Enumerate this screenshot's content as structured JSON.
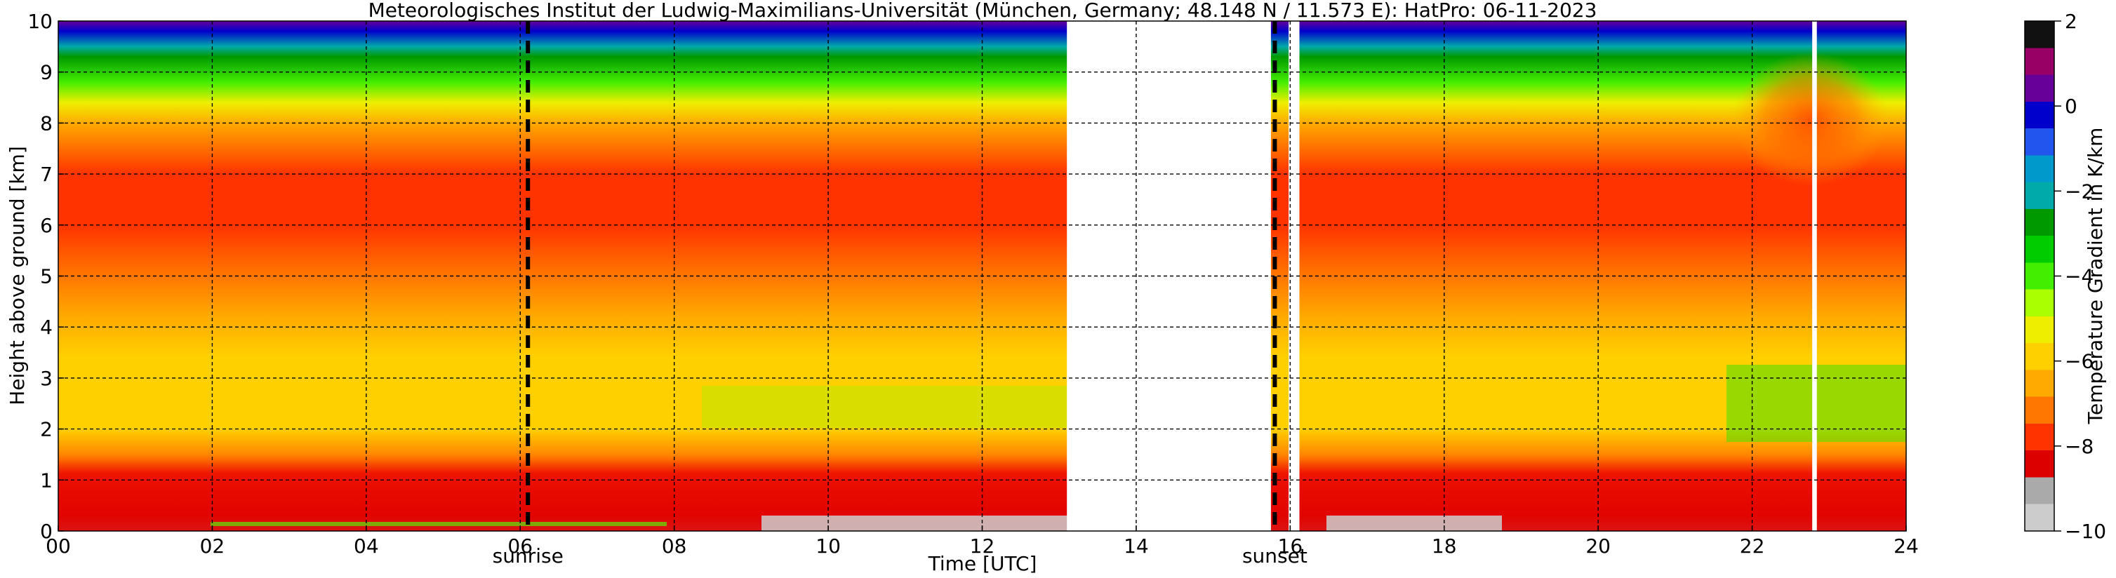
{
  "chart_data": {
    "type": "heatmap",
    "title": "Meteorologisches Institut der Ludwig-Maximilians-Universität (München, Germany; 48.148 N / 11.573 E):    HatPro: 06-11-2023",
    "xlabel": "Time [UTC]",
    "ylabel": "Height above ground [km]",
    "xlim": [
      0,
      24
    ],
    "ylim": [
      0,
      10
    ],
    "x_ticks": [
      0,
      2,
      4,
      6,
      8,
      10,
      12,
      14,
      16,
      18,
      20,
      22,
      24
    ],
    "x_tick_labels": [
      "00",
      "02",
      "04",
      "06",
      "08",
      "10",
      "12",
      "14",
      "16",
      "18",
      "20",
      "22",
      "24"
    ],
    "y_ticks": [
      0,
      1,
      2,
      3,
      4,
      5,
      6,
      7,
      8,
      9,
      10
    ],
    "y_tick_labels": [
      "0",
      "1",
      "2",
      "3",
      "4",
      "5",
      "6",
      "7",
      "8",
      "9",
      "10"
    ],
    "grid": true,
    "colorbar": {
      "label": "Temperature Gradient in K/km",
      "range": [
        -10,
        2
      ],
      "ticks": [
        2,
        0,
        -2,
        -4,
        -6,
        -8,
        -10
      ],
      "tick_labels": [
        "2",
        "0",
        "−2",
        "−4",
        "−6",
        "−8",
        "−10"
      ],
      "colors": [
        "#cccccc",
        "#aaaaaa",
        "#dd0000",
        "#ff3300",
        "#ff7700",
        "#ffaa00",
        "#ffd000",
        "#eeee00",
        "#aaff00",
        "#44ee00",
        "#00cc00",
        "#009900",
        "#00aaaa",
        "#0099cc",
        "#2255ee",
        "#0000cc",
        "#660099",
        "#990066",
        "#111111"
      ]
    },
    "markers": [
      {
        "label": "sunrise",
        "time": 6.1
      },
      {
        "label": "sunset",
        "time": 15.8
      }
    ],
    "data_gaps": [
      [
        13.1,
        15.75
      ],
      [
        15.98,
        16.12
      ],
      [
        22.78,
        22.84
      ]
    ],
    "height_profile_km": [
      0.0,
      0.3,
      0.9,
      1.4,
      2.0,
      2.7,
      3.4,
      4.2,
      5.0,
      6.0,
      7.0,
      8.0,
      8.4,
      8.8,
      9.3,
      9.5,
      9.8,
      10.0
    ],
    "gradient_profile_K_per_km": [
      -9.5,
      -8.5,
      -8.3,
      -7.0,
      -6.2,
      -5.8,
      -6.0,
      -6.5,
      -7.0,
      -7.5,
      -7.5,
      -6.5,
      -5.0,
      -4.0,
      -3.0,
      -2.0,
      -0.5,
      0.5
    ],
    "evening_upper_layer": {
      "time": [
        21.5,
        24
      ],
      "height_km": [
        7.5,
        9.0
      ],
      "gradient_K_per_km": -8.0
    }
  }
}
